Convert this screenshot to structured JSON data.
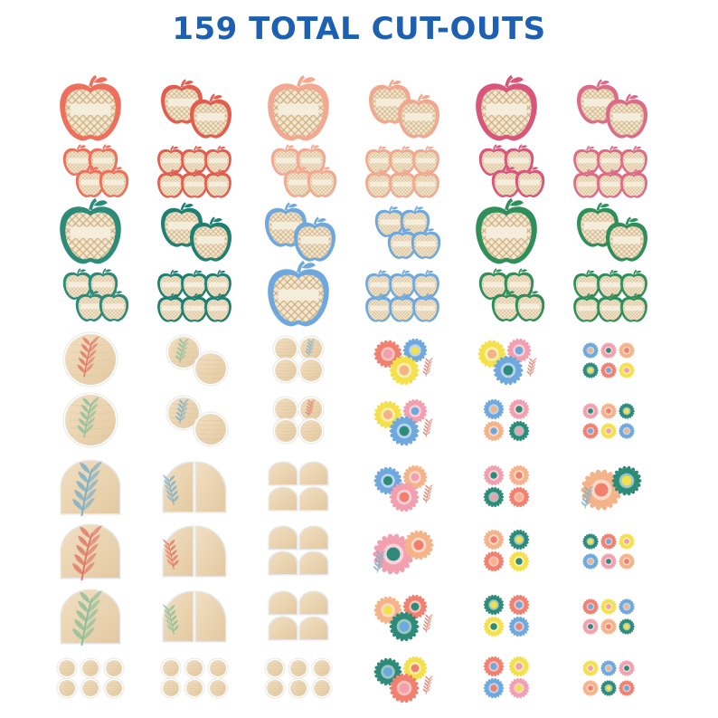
{
  "title": "159 TOTAL CUT-OUTS",
  "colors": {
    "title": "#1d5fb0",
    "apple_coral": "#ee6f5c",
    "apple_red": "#e35d4f",
    "apple_peach": "#f2a891",
    "apple_salmon": "#f0a98f",
    "apple_pink": "#d9557a",
    "apple_rose": "#dd6a86",
    "apple_teal": "#2e8b7a",
    "apple_deep_teal": "#1f7f73",
    "apple_blue": "#6fa8dc",
    "apple_green": "#2f8f5a",
    "wood": "#ecd8b8",
    "wood_dark": "#d9bf95",
    "fern_blue": "#7fb0c8",
    "fern_red": "#e07a6a",
    "fern_green": "#8fbf9a",
    "flower_teal": "#2e8b7a",
    "flower_coral": "#f08070",
    "flower_yellow": "#f4e04d",
    "flower_blue": "#6fa8dc",
    "flower_pink": "#f2a0b0",
    "flower_peach": "#f5b38a"
  },
  "grid": {
    "columns": 6,
    "rows": 10,
    "apple_columns": [
      {
        "id": "coral",
        "color": "apple_coral",
        "bottom_row_color": "apple_teal"
      },
      {
        "id": "red",
        "color": "apple_red",
        "bottom_row_color": "apple_deep_teal"
      },
      {
        "id": "peach",
        "color": "apple_peach",
        "bottom_row_color": "apple_blue"
      },
      {
        "id": "salmon",
        "color": "apple_salmon",
        "bottom_row_color": "apple_blue"
      },
      {
        "id": "pink",
        "color": "apple_pink",
        "bottom_row_color": "apple_green"
      },
      {
        "id": "rose",
        "color": "apple_rose",
        "bottom_row_color": "apple_green"
      }
    ],
    "cells": [
      [
        "apple-1",
        "apple-2",
        "apple-1",
        "apple-2",
        "apple-1",
        "apple-2"
      ],
      [
        "apple-4",
        "apple-6",
        "apple-4",
        "apple-6",
        "apple-4",
        "apple-6"
      ],
      [
        "apple-1",
        "apple-2",
        "apple-2",
        "apple-4",
        "apple-1",
        "apple-2"
      ],
      [
        "apple-4",
        "apple-6",
        "apple-1",
        "apple-6",
        "apple-4",
        "apple-6"
      ],
      [
        "circle-1",
        "circle-2",
        "circle-4",
        "flower-3",
        "flower-3",
        "flower-6"
      ],
      [
        "circle-1",
        "circle-2",
        "circle-4",
        "flower-3",
        "flower-4",
        "flower-6"
      ],
      [
        "arch-1",
        "arch-2",
        "arch-4",
        "flower-3",
        "flower-4",
        "flower-2"
      ],
      [
        "arch-1",
        "arch-2",
        "arch-4",
        "flower-2",
        "flower-4",
        "flower-6"
      ],
      [
        "arch-1",
        "arch-2",
        "arch-4",
        "flower-3",
        "flower-4",
        "flower-6"
      ],
      [
        "circle-6",
        "circle-6",
        "circle-6",
        "flower-3",
        "flower-4",
        "flower-6"
      ]
    ]
  }
}
